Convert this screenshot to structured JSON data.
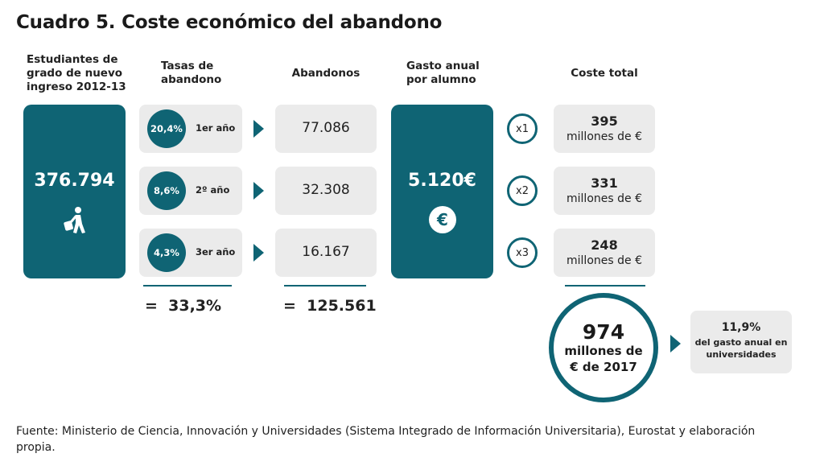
{
  "title": "Cuadro 5. Coste económico del abandono",
  "headers": {
    "students": [
      "Estudiantes de",
      "grado de nuevo",
      "ingreso 2012-13"
    ],
    "rates": [
      "Tasas de",
      "abandono"
    ],
    "dropouts": "Abandonos",
    "spending": [
      "Gasto anual",
      "por alumno"
    ],
    "cost": "Coste total"
  },
  "students_total": "376.794",
  "rows": [
    {
      "rate": "20,4%",
      "year": "1er año",
      "dropouts": "77.086",
      "mult": "x1",
      "cost": "395",
      "cost_unit": "millones de €"
    },
    {
      "rate": "8,6%",
      "year": "2º año",
      "dropouts": "32.308",
      "mult": "x2",
      "cost": "331",
      "cost_unit": "millones de €"
    },
    {
      "rate": "4,3%",
      "year": "3er año",
      "dropouts": "16.167",
      "mult": "x3",
      "cost": "248",
      "cost_unit": "millones de €"
    }
  ],
  "rate_sum": "=  33,3%",
  "dropout_sum": "=  125.561",
  "spending_value": "5.120€",
  "euro_symbol": "€",
  "total": {
    "value": "974",
    "line1": "millones de",
    "line2": "€ de 2017"
  },
  "share": {
    "value": "11,9%",
    "line1": "del gasto anual en",
    "line2": "universidades"
  },
  "footer": "Fuente: Ministerio de Ciencia, Innovación y Universidades (Sistema Integrado de Información Universitaria), Eurostat y elaboración propia.",
  "colors": {
    "teal": "#0f6474",
    "gray": "#ebebeb"
  },
  "icons": {
    "student": "walking-student-icon",
    "euro": "euro-icon"
  }
}
